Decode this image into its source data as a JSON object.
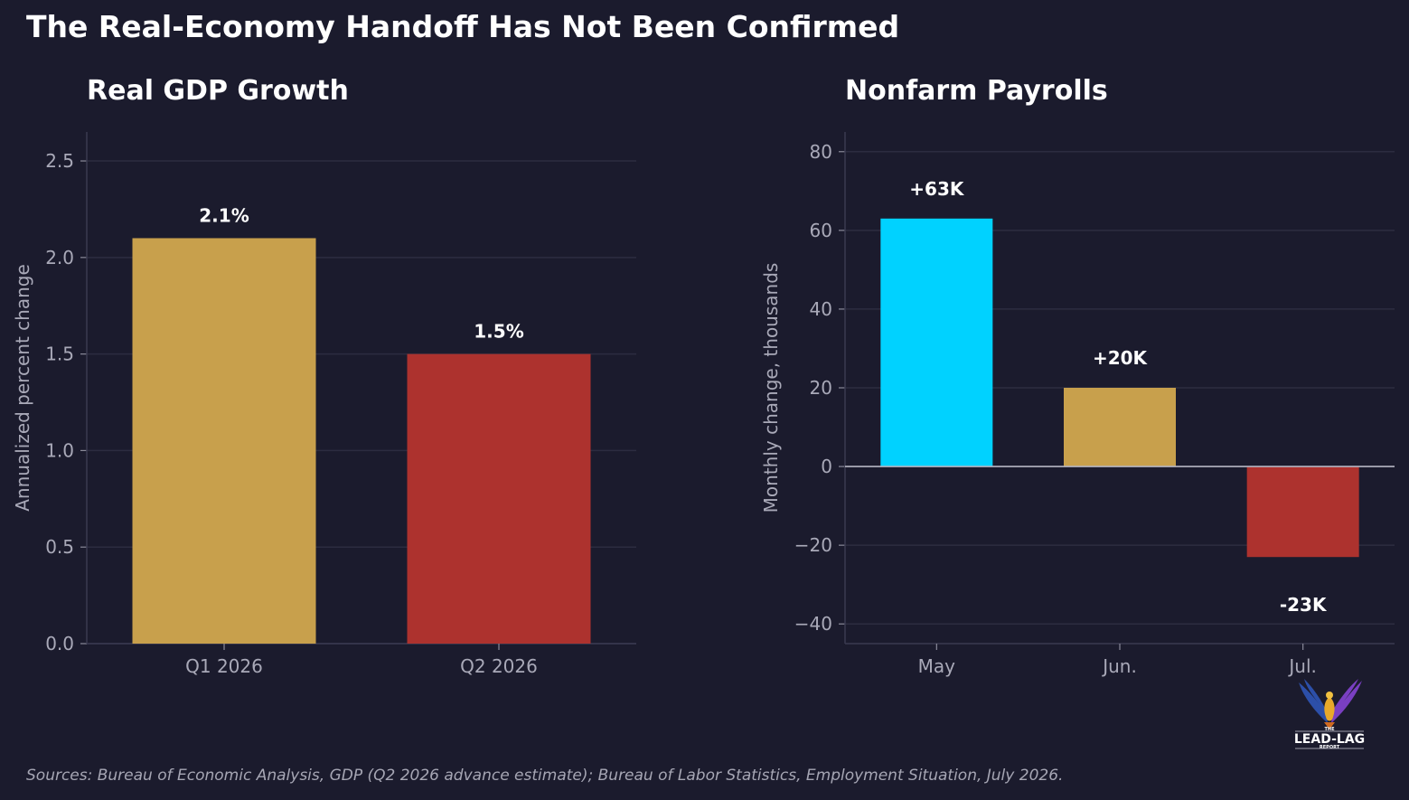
{
  "title": "The Real-Economy Handoff Has Not Been Confirmed",
  "sources": "Sources: Bureau of Economic Analysis, GDP (Q2 2026 advance estimate); Bureau of Labor Statistics, Employment Situation, July 2026.",
  "colors": {
    "background": "#1b1b2d",
    "gold": "#c8a04c",
    "red": "#ad322e",
    "cyan": "#00d2ff",
    "grid": "#2c2c40",
    "text": "#a9a9b8"
  },
  "logo": {
    "text_top": "THE",
    "text_main": "LEAD-LAG",
    "text_bottom": "REPORT"
  },
  "chart_data": [
    {
      "type": "bar",
      "title": "Real GDP Growth",
      "ylabel": "Annualized percent change",
      "xlabel": "",
      "categories": [
        "Q1 2026",
        "Q2 2026"
      ],
      "values": [
        2.1,
        1.5
      ],
      "value_labels": [
        "2.1%",
        "1.5%"
      ],
      "bar_colors": [
        "#c8a04c",
        "#ad322e"
      ],
      "ylim": [
        0,
        2.65
      ],
      "yticks": [
        0.0,
        0.5,
        1.0,
        1.5,
        2.0,
        2.5
      ],
      "ytick_labels": [
        "0.0",
        "0.5",
        "1.0",
        "1.5",
        "2.0",
        "2.5"
      ],
      "grid": true,
      "legend": "none"
    },
    {
      "type": "bar",
      "title": "Nonfarm Payrolls",
      "ylabel": "Monthly change, thousands",
      "xlabel": "",
      "categories": [
        "May",
        "Jun.",
        "Jul."
      ],
      "values": [
        63,
        20,
        -23
      ],
      "value_labels": [
        "+63K",
        "+20K",
        "-23K"
      ],
      "bar_colors": [
        "#00d2ff",
        "#c8a04c",
        "#ad322e"
      ],
      "ylim": [
        -45,
        85
      ],
      "yticks": [
        -40,
        -20,
        0,
        20,
        40,
        60,
        80
      ],
      "ytick_labels": [
        "−40",
        "−20",
        "0",
        "20",
        "40",
        "60",
        "80"
      ],
      "grid": true,
      "zero_line": true,
      "legend": "none"
    }
  ]
}
